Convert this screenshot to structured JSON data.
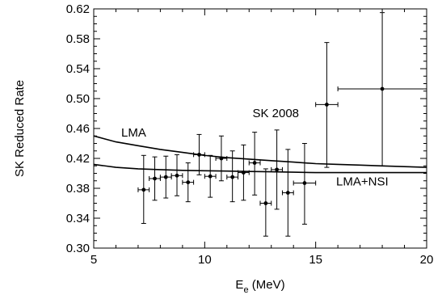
{
  "chart_data": {
    "type": "scatter",
    "title": "",
    "xlabel": {
      "main": "E",
      "sub": "e",
      "unit": " (MeV)"
    },
    "ylabel": "SK Reduced Rate",
    "xlim": [
      5,
      20
    ],
    "ylim": [
      0.3,
      0.62
    ],
    "x_ticks": [
      5,
      10,
      15,
      20
    ],
    "x_tick_labels": [
      "5",
      "10",
      "15",
      "20"
    ],
    "x_minor_step": 1,
    "y_ticks": [
      0.3,
      0.34,
      0.38,
      0.42,
      0.46,
      0.5,
      0.54,
      0.58,
      0.62
    ],
    "y_tick_labels": [
      "0.30",
      "0.34",
      "0.38",
      "0.42",
      "0.46",
      "0.50",
      "0.54",
      "0.58",
      "0.62"
    ],
    "y_minor_step": 0.01,
    "grid": false,
    "legend": "none",
    "annotations": [
      {
        "text": "SK 2008",
        "x": 13.2,
        "y": 0.475
      },
      {
        "text": "LMA",
        "x": 6.8,
        "y": 0.449
      },
      {
        "text": "LMA+NSI",
        "x": 17.1,
        "y": 0.384
      }
    ],
    "curves": [
      {
        "name": "LMA",
        "x": [
          5,
          6,
          7,
          8,
          9,
          10,
          11,
          12,
          13,
          14,
          15,
          16,
          17,
          18,
          19,
          20
        ],
        "y": [
          0.45,
          0.442,
          0.437,
          0.432,
          0.428,
          0.424,
          0.421,
          0.419,
          0.417,
          0.415,
          0.413,
          0.412,
          0.411,
          0.41,
          0.409,
          0.408
        ]
      },
      {
        "name": "LMA+NSI",
        "x": [
          5,
          6,
          7,
          8,
          9,
          10,
          11,
          12,
          13,
          14,
          15,
          16,
          17,
          18,
          19,
          20
        ],
        "y": [
          0.412,
          0.408,
          0.406,
          0.405,
          0.404,
          0.4035,
          0.403,
          0.4025,
          0.402,
          0.4015,
          0.401,
          0.401,
          0.401,
          0.401,
          0.401,
          0.401
        ]
      }
    ],
    "series": [
      {
        "name": "SK 2008",
        "points": [
          {
            "x": 7.25,
            "y": 0.378,
            "xerr": 0.25,
            "ylo": 0.333,
            "yhi": 0.424
          },
          {
            "x": 7.75,
            "y": 0.393,
            "xerr": 0.25,
            "ylo": 0.364,
            "yhi": 0.422
          },
          {
            "x": 8.25,
            "y": 0.395,
            "xerr": 0.25,
            "ylo": 0.367,
            "yhi": 0.423
          },
          {
            "x": 8.75,
            "y": 0.397,
            "xerr": 0.25,
            "ylo": 0.37,
            "yhi": 0.425
          },
          {
            "x": 9.25,
            "y": 0.388,
            "xerr": 0.25,
            "ylo": 0.362,
            "yhi": 0.414
          },
          {
            "x": 9.75,
            "y": 0.425,
            "xerr": 0.25,
            "ylo": 0.398,
            "yhi": 0.452
          },
          {
            "x": 10.25,
            "y": 0.396,
            "xerr": 0.25,
            "ylo": 0.368,
            "yhi": 0.424
          },
          {
            "x": 10.75,
            "y": 0.42,
            "xerr": 0.25,
            "ylo": 0.39,
            "yhi": 0.45
          },
          {
            "x": 11.25,
            "y": 0.395,
            "xerr": 0.25,
            "ylo": 0.362,
            "yhi": 0.43
          },
          {
            "x": 11.75,
            "y": 0.401,
            "xerr": 0.25,
            "ylo": 0.364,
            "yhi": 0.438
          },
          {
            "x": 12.25,
            "y": 0.414,
            "xerr": 0.25,
            "ylo": 0.371,
            "yhi": 0.455
          },
          {
            "x": 12.75,
            "y": 0.36,
            "xerr": 0.25,
            "ylo": 0.316,
            "yhi": 0.406
          },
          {
            "x": 13.25,
            "y": 0.405,
            "xerr": 0.25,
            "ylo": 0.352,
            "yhi": 0.458
          },
          {
            "x": 13.75,
            "y": 0.374,
            "xerr": 0.25,
            "ylo": 0.316,
            "yhi": 0.432
          },
          {
            "x": 14.5,
            "y": 0.387,
            "xerr": 0.5,
            "ylo": 0.332,
            "yhi": 0.44
          },
          {
            "x": 15.5,
            "y": 0.492,
            "xerr": 0.5,
            "ylo": 0.408,
            "yhi": 0.575
          },
          {
            "x": 18.0,
            "y": 0.513,
            "xerr": 2.0,
            "ylo": 0.41,
            "yhi": 0.615
          }
        ]
      }
    ]
  }
}
